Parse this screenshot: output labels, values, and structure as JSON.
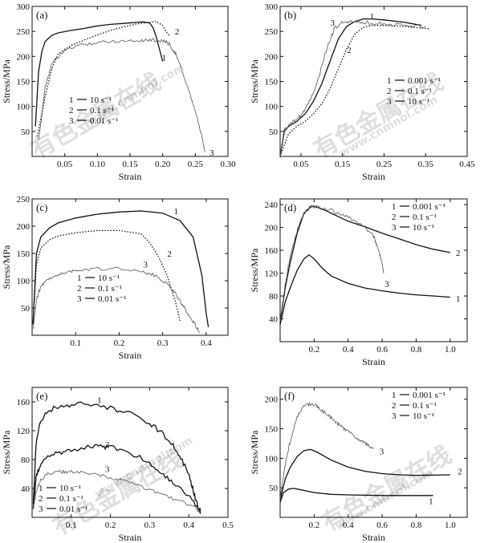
{
  "watermark": {
    "cn": "有色金属在线",
    "url": "www.cnmnol.com"
  },
  "chart_data": [
    {
      "type": "line",
      "panel_label": "(a)",
      "xlabel": "Strain",
      "ylabel": "Stress/MPa",
      "xlim": [
        0,
        0.3
      ],
      "ylim": [
        0,
        300
      ],
      "xticks": [
        0.05,
        0.1,
        0.15,
        0.2,
        0.25,
        0.3
      ],
      "xtick_labels": [
        "0.05",
        "0.10",
        "0.15",
        "0.20",
        "0.25",
        "0.30"
      ],
      "yticks": [
        50,
        100,
        150,
        200,
        250,
        300
      ],
      "ytick_labels": [
        "50",
        "100",
        "150",
        "200",
        "250",
        "300"
      ],
      "legend": {
        "position": "bottom-left",
        "entries": [
          {
            "num": "1",
            "label": "10 s⁻¹"
          },
          {
            "num": "2",
            "label": "0.1 s⁻¹"
          },
          {
            "num": "3",
            "label": "0.01 s⁻¹"
          }
        ]
      },
      "series": [
        {
          "num": "1",
          "dash": "solid",
          "x": [
            0.005,
            0.01,
            0.015,
            0.02,
            0.03,
            0.04,
            0.06,
            0.08,
            0.1,
            0.12,
            0.14,
            0.16,
            0.17,
            0.18,
            0.185,
            0.19,
            0.195,
            0.2
          ],
          "y": [
            60,
            170,
            210,
            230,
            242,
            247,
            252,
            256,
            261,
            264,
            266,
            268,
            269,
            267,
            258,
            240,
            215,
            190
          ],
          "label_pos": [
            0.195,
            198
          ]
        },
        {
          "num": "2",
          "dash": "dotted",
          "x": [
            0.008,
            0.02,
            0.03,
            0.04,
            0.06,
            0.08,
            0.1,
            0.12,
            0.14,
            0.16,
            0.18,
            0.19,
            0.2,
            0.205,
            0.21
          ],
          "y": [
            40,
            120,
            175,
            205,
            222,
            233,
            243,
            252,
            259,
            265,
            268,
            270,
            262,
            250,
            242
          ],
          "label_pos": [
            0.215,
            250
          ]
        },
        {
          "num": "3",
          "dash": "noisy",
          "x": [
            0.01,
            0.02,
            0.03,
            0.05,
            0.07,
            0.1,
            0.13,
            0.16,
            0.18,
            0.2,
            0.21,
            0.22,
            0.23,
            0.24,
            0.25,
            0.26,
            0.265
          ],
          "y": [
            30,
            140,
            185,
            212,
            222,
            228,
            231,
            232,
            233,
            232,
            225,
            205,
            170,
            130,
            90,
            40,
            8
          ],
          "label_pos": [
            0.268,
            8
          ]
        }
      ]
    },
    {
      "type": "line",
      "panel_label": "(b)",
      "xlabel": "Strain",
      "ylabel": "Stress/MPa",
      "xlim": [
        0,
        0.45
      ],
      "ylim": [
        0,
        300
      ],
      "xticks": [
        0.05,
        0.15,
        0.25,
        0.35,
        0.45
      ],
      "xtick_labels": [
        "0.05",
        "0.15",
        "0.25",
        "0.35",
        "0.45"
      ],
      "yticks": [
        50,
        100,
        150,
        200,
        250,
        300
      ],
      "ytick_labels": [
        "50",
        "100",
        "150",
        "200",
        "250",
        "300"
      ],
      "legend": {
        "position": "right",
        "entries": [
          {
            "num": "1",
            "label": "0.001 s⁻¹"
          },
          {
            "num": "2",
            "label": "0.1 s⁻¹"
          },
          {
            "num": "3",
            "label": "10 s⁻¹"
          }
        ]
      },
      "series": [
        {
          "num": "1",
          "dash": "solid",
          "x": [
            0,
            0.01,
            0.02,
            0.04,
            0.06,
            0.08,
            0.1,
            0.12,
            0.14,
            0.16,
            0.18,
            0.2,
            0.22,
            0.25,
            0.3,
            0.34
          ],
          "y": [
            0,
            50,
            60,
            70,
            85,
            110,
            145,
            190,
            235,
            260,
            270,
            275,
            275,
            273,
            268,
            262
          ],
          "label_pos": [
            0.21,
            281
          ]
        },
        {
          "num": "2",
          "dash": "dotted",
          "x": [
            0,
            0.02,
            0.04,
            0.06,
            0.08,
            0.1,
            0.12,
            0.14,
            0.16,
            0.18,
            0.2,
            0.22,
            0.25,
            0.3,
            0.36
          ],
          "y": [
            0,
            45,
            60,
            70,
            85,
            105,
            135,
            175,
            215,
            245,
            258,
            262,
            262,
            260,
            255
          ],
          "label_pos": [
            0.155,
            213
          ]
        },
        {
          "num": "3",
          "dash": "noisy",
          "x": [
            0,
            0.01,
            0.03,
            0.05,
            0.07,
            0.09,
            0.11,
            0.13,
            0.15,
            0.17,
            0.2,
            0.25,
            0.3,
            0.35
          ],
          "y": [
            0,
            55,
            68,
            82,
            110,
            150,
            210,
            255,
            268,
            270,
            268,
            265,
            262,
            260
          ],
          "label_pos": [
            0.115,
            268
          ]
        }
      ]
    },
    {
      "type": "line",
      "panel_label": "(c)",
      "xlabel": "Strain",
      "ylabel": "Stress/MPa",
      "xlim": [
        0,
        0.45
      ],
      "ylim": [
        0,
        250
      ],
      "xticks": [
        0.1,
        0.2,
        0.3,
        0.4
      ],
      "xtick_labels": [
        "0.1",
        "0.2",
        "0.3",
        "0.4"
      ],
      "yticks": [
        50,
        100,
        150,
        200,
        250
      ],
      "ytick_labels": [
        "50",
        "100",
        "150",
        "200",
        "250"
      ],
      "legend": {
        "position": "bottom-center",
        "entries": [
          {
            "num": "1",
            "label": "10 s⁻¹"
          },
          {
            "num": "2",
            "label": "0.1 s⁻¹"
          },
          {
            "num": "3",
            "label": "0.01 s⁻¹"
          }
        ]
      },
      "series": [
        {
          "num": "1",
          "dash": "solid",
          "x": [
            0.002,
            0.01,
            0.02,
            0.04,
            0.06,
            0.1,
            0.15,
            0.2,
            0.25,
            0.3,
            0.34,
            0.37,
            0.39,
            0.4,
            0.405
          ],
          "y": [
            20,
            150,
            180,
            197,
            206,
            215,
            222,
            226,
            228,
            224,
            210,
            180,
            110,
            40,
            15
          ],
          "label_pos": [
            0.32,
            228
          ]
        },
        {
          "num": "2",
          "dash": "dotted",
          "x": [
            0.005,
            0.01,
            0.02,
            0.04,
            0.06,
            0.1,
            0.15,
            0.2,
            0.25,
            0.27,
            0.29,
            0.31,
            0.33,
            0.34
          ],
          "y": [
            60,
            130,
            160,
            175,
            182,
            188,
            192,
            192,
            186,
            170,
            145,
            110,
            60,
            25
          ],
          "label_pos": [
            0.305,
            150
          ]
        },
        {
          "num": "3",
          "dash": "noisy",
          "x": [
            0.003,
            0.01,
            0.02,
            0.04,
            0.07,
            0.1,
            0.15,
            0.2,
            0.25,
            0.28,
            0.31,
            0.33,
            0.35,
            0.37,
            0.385
          ],
          "y": [
            15,
            65,
            90,
            105,
            113,
            118,
            122,
            122,
            118,
            110,
            95,
            75,
            50,
            25,
            5
          ],
          "label_pos": [
            0.25,
            130
          ]
        }
      ]
    },
    {
      "type": "line",
      "panel_label": "(d)",
      "xlabel": "Strain",
      "ylabel": "Stress/MPa",
      "xlim": [
        0,
        1.1
      ],
      "ylim": [
        0,
        250
      ],
      "xticks": [
        0.2,
        0.4,
        0.6,
        0.8,
        1.0
      ],
      "xtick_labels": [
        "0.2",
        "0.4",
        "0.6",
        "0.8",
        "1.0"
      ],
      "yticks": [
        40,
        80,
        120,
        160,
        200,
        240
      ],
      "ytick_labels": [
        "40",
        "80",
        "120",
        "160",
        "200",
        "240"
      ],
      "legend": {
        "position": "top-right",
        "entries": [
          {
            "num": "1",
            "label": "0.001 s⁻¹"
          },
          {
            "num": "2",
            "label": "0.1 s⁻¹"
          },
          {
            "num": "3",
            "label": "10 s⁻¹"
          }
        ]
      },
      "series": [
        {
          "num": "1",
          "dash": "solid",
          "x": [
            0,
            0.03,
            0.06,
            0.1,
            0.14,
            0.17,
            0.2,
            0.25,
            0.3,
            0.4,
            0.5,
            0.6,
            0.7,
            0.8,
            0.9,
            1.0
          ],
          "y": [
            30,
            70,
            95,
            125,
            145,
            152,
            145,
            128,
            115,
            102,
            94,
            89,
            85,
            82,
            80,
            78
          ],
          "label_pos": [
            1.02,
            76
          ]
        },
        {
          "num": "2",
          "dash": "solid",
          "x": [
            0,
            0.03,
            0.06,
            0.1,
            0.14,
            0.18,
            0.2,
            0.25,
            0.3,
            0.4,
            0.5,
            0.6,
            0.7,
            0.8,
            0.9,
            1.0
          ],
          "y": [
            35,
            95,
            140,
            190,
            225,
            236,
            237,
            232,
            225,
            211,
            201,
            190,
            180,
            170,
            162,
            156
          ],
          "label_pos": [
            1.02,
            156
          ]
        },
        {
          "num": "3",
          "dash": "noisy",
          "x": [
            0,
            0.03,
            0.06,
            0.1,
            0.14,
            0.18,
            0.22,
            0.3,
            0.4,
            0.5,
            0.55,
            0.58,
            0.6,
            0.61
          ],
          "y": [
            35,
            100,
            150,
            195,
            225,
            236,
            236,
            230,
            218,
            200,
            185,
            160,
            135,
            120
          ],
          "label_pos": [
            0.6,
            102
          ]
        }
      ]
    },
    {
      "type": "line",
      "panel_label": "(e)",
      "xlabel": "Strain",
      "ylabel": "Stress/MPa",
      "xlim": [
        0,
        0.5
      ],
      "ylim": [
        0,
        180
      ],
      "xticks": [
        0.1,
        0.2,
        0.3,
        0.4,
        0.5
      ],
      "xtick_labels": [
        "0.1",
        "0.2",
        "0.3",
        "0.4",
        "0.5"
      ],
      "yticks": [
        40,
        80,
        120,
        160
      ],
      "ytick_labels": [
        "40",
        "80",
        "120",
        "160"
      ],
      "legend": {
        "position": "bottom-left",
        "entries": [
          {
            "num": "1",
            "label": "10 s⁻¹"
          },
          {
            "num": "2",
            "label": "0.1 s⁻¹"
          },
          {
            "num": "3",
            "label": "0.01 s⁻¹"
          }
        ]
      },
      "series": [
        {
          "num": "1",
          "dash": "wavy",
          "x": [
            0.003,
            0.01,
            0.02,
            0.04,
            0.07,
            0.1,
            0.15,
            0.2,
            0.25,
            0.3,
            0.33,
            0.36,
            0.38,
            0.4,
            0.41,
            0.42,
            0.43
          ],
          "y": [
            20,
            100,
            132,
            148,
            153,
            156,
            157,
            152,
            143,
            130,
            118,
            100,
            82,
            60,
            40,
            20,
            8
          ],
          "label_pos": [
            0.16,
            163
          ]
        },
        {
          "num": "2",
          "dash": "wavy",
          "x": [
            0.003,
            0.01,
            0.02,
            0.04,
            0.07,
            0.1,
            0.15,
            0.18,
            0.2,
            0.25,
            0.3,
            0.33,
            0.36,
            0.4,
            0.42,
            0.43
          ],
          "y": [
            15,
            55,
            72,
            83,
            90,
            94,
            97,
            98,
            97,
            90,
            75,
            62,
            48,
            30,
            15,
            5
          ],
          "label_pos": [
            0.18,
            101
          ]
        },
        {
          "num": "3",
          "dash": "noisy",
          "x": [
            0.003,
            0.01,
            0.02,
            0.04,
            0.07,
            0.1,
            0.15,
            0.2,
            0.25,
            0.3,
            0.35,
            0.4,
            0.43
          ],
          "y": [
            10,
            35,
            50,
            60,
            63,
            63,
            60,
            55,
            48,
            38,
            28,
            18,
            8
          ],
          "label_pos": [
            0.18,
            67
          ]
        }
      ]
    },
    {
      "type": "line",
      "panel_label": "(f)",
      "xlabel": "Strain",
      "ylabel": "Stress/MPa",
      "xlim": [
        0,
        1.1
      ],
      "ylim": [
        0,
        220
      ],
      "xticks": [
        0.2,
        0.4,
        0.6,
        0.8,
        1.0
      ],
      "xtick_labels": [
        "0.2",
        "0.4",
        "0.6",
        "0.8",
        "1.0"
      ],
      "yticks": [
        50,
        100,
        150,
        200
      ],
      "ytick_labels": [
        "50",
        "100",
        "150",
        "200"
      ],
      "legend": {
        "position": "top-right",
        "entries": [
          {
            "num": "1",
            "label": "0.001 s⁻¹"
          },
          {
            "num": "2",
            "label": "0.1 s⁻¹"
          },
          {
            "num": "3",
            "label": "10 s⁻¹"
          }
        ]
      },
      "series": [
        {
          "num": "1",
          "dash": "solid",
          "x": [
            0,
            0.02,
            0.05,
            0.08,
            0.1,
            0.15,
            0.2,
            0.3,
            0.4,
            0.6,
            0.8,
            0.9
          ],
          "y": [
            25,
            42,
            48,
            49,
            48,
            45,
            42,
            39,
            38,
            37,
            37,
            37
          ],
          "label_pos": [
            0.86,
            28
          ]
        },
        {
          "num": "2",
          "dash": "solid",
          "x": [
            0,
            0.03,
            0.06,
            0.1,
            0.14,
            0.18,
            0.22,
            0.3,
            0.4,
            0.5,
            0.6,
            0.7,
            0.8,
            1.0
          ],
          "y": [
            30,
            65,
            85,
            103,
            113,
            115,
            110,
            97,
            85,
            78,
            74,
            72,
            71,
            72
          ],
          "label_pos": [
            1.03,
            78
          ]
        },
        {
          "num": "3",
          "dash": "noisy",
          "x": [
            0,
            0.03,
            0.06,
            0.1,
            0.14,
            0.18,
            0.22,
            0.26,
            0.3,
            0.35,
            0.4,
            0.45,
            0.5,
            0.55
          ],
          "y": [
            30,
            90,
            130,
            170,
            188,
            192,
            188,
            178,
            168,
            156,
            145,
            135,
            125,
            116
          ],
          "label_pos": [
            0.57,
            112
          ]
        }
      ]
    }
  ]
}
